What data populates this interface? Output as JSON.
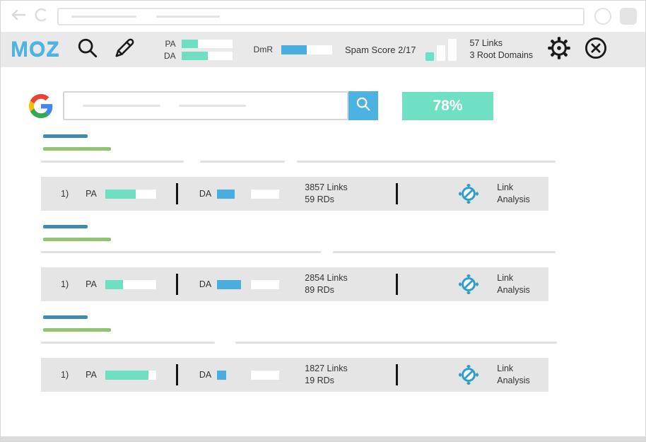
{
  "colors": {
    "teal": "#6fdfc1",
    "blue": "#4aaddf",
    "toolbar_bg": "#e9e9e9",
    "card_bg": "#e5e5e5",
    "title_blue": "#4387ad",
    "url_green": "#90c46e",
    "badge_teal": "#70e0c3",
    "search_btn_blue": "#4cb2e2",
    "link_icon_blue": "#2f9fca"
  },
  "icons": {
    "back": "back-arrow-icon",
    "refresh": "refresh-icon",
    "toolbar_search": "magnifier-icon",
    "toolbar_edit": "pencil-icon",
    "spam_chart": "bar-chart-icon",
    "settings": "gear-icon",
    "close": "circle-x-icon",
    "google": "google-g-icon",
    "search_button": "magnifier-icon",
    "link_analysis": "compass-slash-icon"
  },
  "toolbar": {
    "logo": "MOZ",
    "pa_label": "PA",
    "da_label": "DA",
    "pa_fill": "32%",
    "da_fill": "52%",
    "dmr_label": "DmR",
    "dmr_fill": "50%",
    "spam_score": "Spam Score 2/17",
    "links": "57 Links",
    "root_domains": "3 Root Domains"
  },
  "search": {
    "badge": "78%"
  },
  "card_labels": {
    "pa": "PA",
    "da": "DA",
    "action_line1": "Link",
    "action_line2": "Analysis"
  },
  "results": [
    {
      "num": "1)",
      "pa_fill": "60%",
      "da_fill": "25px",
      "links": "3857 Links",
      "rds": "59 RDs"
    },
    {
      "num": "1)",
      "pa_fill": "35%",
      "da_fill": "34px",
      "links": "2854 Links",
      "rds": "89 RDs"
    },
    {
      "num": "1)",
      "pa_fill": "85%",
      "da_fill": "13px",
      "links": "1827 Links",
      "rds": "19 RDs"
    }
  ]
}
